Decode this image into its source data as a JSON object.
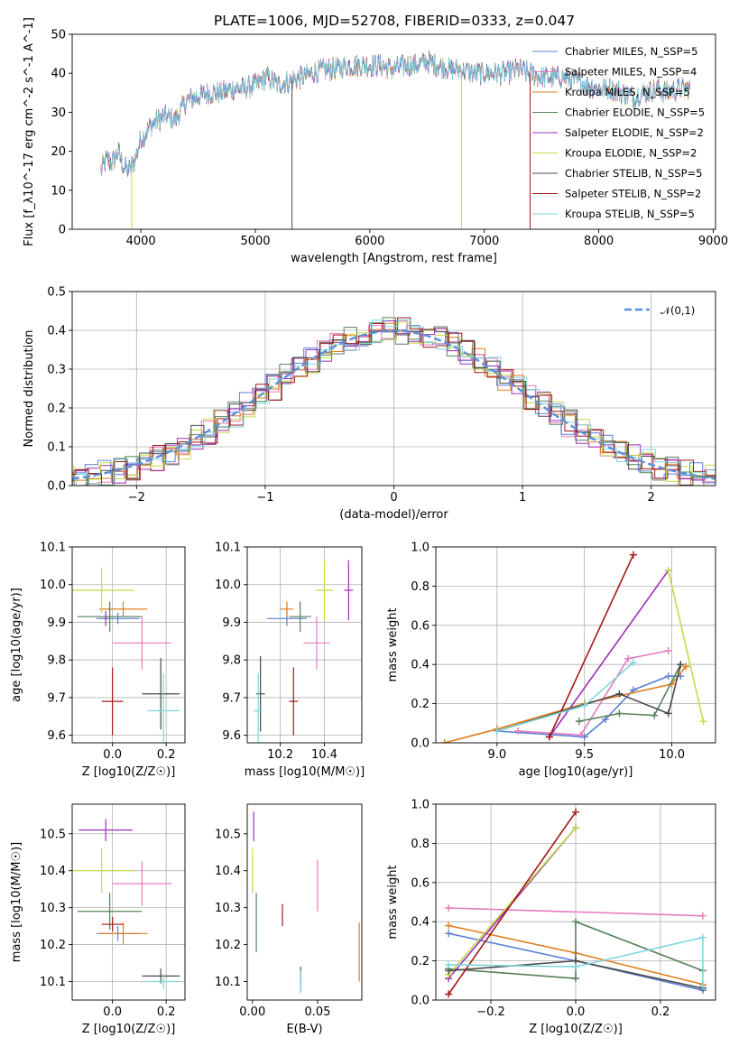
{
  "figure": {
    "title": "PLATE=1006, MJD=52708, FIBERID=0333, z=0.047"
  },
  "colors": {
    "Chabrier MILES": "#5b7fd6",
    "Salpeter MILES": "#e37bbf",
    "Kroupa MILES": "#e07e1e",
    "Chabrier ELODIE": "#55825a",
    "Salpeter ELODIE": "#9b30b5",
    "Kroupa ELODIE": "#c4dc47",
    "Chabrier STELIB": "#4a4a4a",
    "Salpeter STELIB": "#a51818",
    "Kroupa STELIB": "#7fd6dc",
    "gaussian": "#5b8fdc"
  },
  "chart_data": [
    {
      "id": "spectrum",
      "type": "line",
      "title": "PLATE=1006, MJD=52708, FIBERID=0333, z=0.047",
      "xlabel": "wavelength [Angstrom, rest frame]",
      "ylabel": "Flux [f_λ10^-17 erg cm^-2 s^-1 A^-1]",
      "xlim": [
        3400,
        9020
      ],
      "ylim": [
        0,
        50
      ],
      "xticks": [
        4000,
        5000,
        6000,
        7000,
        8000,
        9000
      ],
      "yticks": [
        0,
        10,
        20,
        30,
        40,
        50
      ],
      "grid": false,
      "legend_position": "top-right",
      "legend": [
        "Chabrier MILES, N_SSP=5",
        "Salpeter MILES, N_SSP=4",
        "Kroupa MILES, N_SSP=5",
        "Chabrier ELODIE, N_SSP=5",
        "Salpeter ELODIE, N_SSP=2",
        "Kroupa ELODIE, N_SSP=2",
        "Chabrier STELIB, N_SSP=5",
        "Salpeter STELIB, N_SSP=2",
        "Kroupa STELIB, N_SSP=5"
      ],
      "series_shape": {
        "x": [
          3650,
          3700,
          3750,
          3800,
          3850,
          3900,
          3950,
          4000,
          4100,
          4200,
          4300,
          4400,
          4500,
          4600,
          4700,
          4800,
          4900,
          5000,
          5100,
          5200,
          5300,
          5400,
          5500,
          5600,
          5700,
          5800,
          5900,
          6000,
          6100,
          6200,
          6300,
          6400,
          6500,
          6600,
          6700,
          6800,
          6900,
          7000,
          7100,
          7200,
          7300,
          7400,
          7500,
          7600,
          7700,
          7800,
          7900,
          8000,
          8100,
          8200,
          8300,
          8400,
          8500,
          8600,
          8700,
          8800
        ],
        "y": [
          15,
          18,
          17,
          20,
          16,
          15,
          18,
          23,
          27,
          29,
          28,
          33,
          34,
          35,
          35,
          36,
          36,
          37,
          39,
          37,
          38,
          39,
          40,
          41,
          41,
          42,
          42,
          42,
          42,
          41,
          42,
          42,
          43,
          42,
          41,
          41,
          40,
          40,
          40,
          40,
          41,
          40,
          39,
          39,
          39,
          38,
          37,
          36,
          36,
          35,
          34,
          35,
          36,
          35,
          36,
          36
        ]
      },
      "dropouts": [
        {
          "x": 3920,
          "series": "Kroupa ELODIE",
          "to": 0
        },
        {
          "x": 5320,
          "series": "Chabrier STELIB",
          "to": 0
        },
        {
          "x": 6800,
          "series": "Kroupa ELODIE",
          "to": 0
        },
        {
          "x": 7400,
          "series": "Salpeter STELIB",
          "to": 0
        }
      ]
    },
    {
      "id": "residuals",
      "type": "histogram",
      "xlabel": "(data-model)/error",
      "ylabel": "Normed distribution",
      "xlim": [
        -2.5,
        2.5
      ],
      "ylim": [
        0,
        0.5
      ],
      "xticks": [
        -2,
        -1,
        0,
        1,
        2
      ],
      "yticks": [
        0.0,
        0.1,
        0.2,
        0.3,
        0.4,
        0.5
      ],
      "grid": true,
      "legend_position": "top-right",
      "legend": [
        "𝒩(0,1)"
      ],
      "bin_width": 0.1,
      "note_values": "each series follows a standard normal density with scatter of about 0.03"
    },
    {
      "id": "age-vs-Z",
      "type": "errorbar",
      "xlabel": "Z [log10(Z/Z☉)]",
      "ylabel": "age  [log10(age/yr)]",
      "xlim": [
        -0.15,
        0.27
      ],
      "ylim": [
        9.58,
        10.1
      ],
      "xticks": [
        0.0,
        0.2
      ],
      "yticks": [
        9.6,
        9.7,
        9.8,
        9.9,
        10.0,
        10.1
      ],
      "grid": true,
      "points": [
        {
          "series": "Chabrier MILES",
          "x": 0.02,
          "y": 9.91,
          "xerr": 0.08,
          "yerr": 0.015
        },
        {
          "series": "Salpeter MILES",
          "x": 0.11,
          "y": 9.845,
          "xerr": 0.11,
          "yerr": 0.07
        },
        {
          "series": "Kroupa MILES",
          "x": 0.04,
          "y": 9.935,
          "xerr": 0.09,
          "yerr": 0.02
        },
        {
          "series": "Chabrier ELODIE",
          "x": -0.01,
          "y": 9.915,
          "xerr": 0.12,
          "yerr": 0.04
        },
        {
          "series": "Salpeter ELODIE",
          "x": -0.025,
          "y": 9.91,
          "xerr": 0.005,
          "yerr": 0.02
        },
        {
          "series": "Kroupa ELODIE",
          "x": -0.04,
          "y": 9.985,
          "xerr": 0.12,
          "yerr": 0.06
        },
        {
          "series": "Chabrier STELIB",
          "x": 0.18,
          "y": 9.71,
          "xerr": 0.07,
          "yerr": 0.095
        },
        {
          "series": "Salpeter STELIB",
          "x": 0.0,
          "y": 9.69,
          "xerr": 0.04,
          "yerr": 0.09
        },
        {
          "series": "Kroupa STELIB",
          "x": 0.19,
          "y": 9.665,
          "xerr": 0.06,
          "yerr": 0.1
        }
      ]
    },
    {
      "id": "age-vs-mass",
      "type": "errorbar",
      "xlabel": "mass [log10(M/M☉)]",
      "xlim": [
        10.05,
        10.57
      ],
      "ylim": [
        9.58,
        10.1
      ],
      "xticks": [
        10.2,
        10.4
      ],
      "yticks": [
        9.6,
        9.7,
        9.8,
        9.9,
        10.0,
        10.1
      ],
      "grid": true,
      "points": [
        {
          "series": "Chabrier MILES",
          "x": 10.23,
          "y": 9.91,
          "xerr": 0.09,
          "yerr": 0.02
        },
        {
          "series": "Salpeter MILES",
          "x": 10.365,
          "y": 9.845,
          "xerr": 0.06,
          "yerr": 0.07
        },
        {
          "series": "Kroupa MILES",
          "x": 10.23,
          "y": 9.935,
          "xerr": 0.03,
          "yerr": 0.02
        },
        {
          "series": "Chabrier ELODIE",
          "x": 10.29,
          "y": 9.915,
          "xerr": 0.05,
          "yerr": 0.04
        },
        {
          "series": "Salpeter ELODIE",
          "x": 10.51,
          "y": 9.985,
          "xerr": 0.02,
          "yerr": 0.08
        },
        {
          "series": "Kroupa ELODIE",
          "x": 10.4,
          "y": 9.985,
          "xerr": 0.04,
          "yerr": 0.08
        },
        {
          "series": "Chabrier STELIB",
          "x": 10.11,
          "y": 9.71,
          "xerr": 0.02,
          "yerr": 0.1
        },
        {
          "series": "Salpeter STELIB",
          "x": 10.26,
          "y": 9.69,
          "xerr": 0.02,
          "yerr": 0.09
        },
        {
          "series": "Kroupa STELIB",
          "x": 10.1,
          "y": 9.665,
          "xerr": 0.02,
          "yerr": 0.1
        }
      ]
    },
    {
      "id": "massweight-vs-age",
      "type": "line",
      "xlabel": "age  [log10(age/yr)]",
      "ylabel": "mass weight",
      "xlim": [
        8.65,
        10.25
      ],
      "ylim": [
        0,
        1.0
      ],
      "xticks": [
        9.0,
        9.5,
        10.0
      ],
      "yticks": [
        0.0,
        0.2,
        0.4,
        0.6,
        0.8,
        1.0
      ],
      "grid": true,
      "series": [
        {
          "name": "Chabrier MILES",
          "x": [
            9.0,
            9.5,
            9.62,
            9.78,
            9.98,
            10.05
          ],
          "y": [
            0.06,
            0.03,
            0.12,
            0.27,
            0.34,
            0.34
          ]
        },
        {
          "name": "Salpeter MILES",
          "x": [
            9.12,
            9.48,
            9.75,
            9.98
          ],
          "y": [
            0.06,
            0.04,
            0.43,
            0.47
          ]
        },
        {
          "name": "Kroupa MILES",
          "x": [
            8.7,
            9.0,
            9.5,
            10.0,
            10.08
          ],
          "y": [
            0.0,
            0.07,
            0.2,
            0.3,
            0.39
          ]
        },
        {
          "name": "Chabrier ELODIE",
          "x": [
            9.47,
            9.7,
            9.9,
            10.05
          ],
          "y": [
            0.11,
            0.15,
            0.14,
            0.4
          ]
        },
        {
          "name": "Salpeter ELODIE",
          "x": [
            9.3,
            9.98
          ],
          "y": [
            0.03,
            0.88
          ]
        },
        {
          "name": "Kroupa ELODIE",
          "x": [
            9.98,
            10.18
          ],
          "y": [
            0.88,
            0.11
          ]
        },
        {
          "name": "Chabrier STELIB",
          "x": [
            9.0,
            9.7,
            9.98,
            10.05
          ],
          "y": [
            0.06,
            0.25,
            0.15,
            0.4
          ]
        },
        {
          "name": "Salpeter STELIB",
          "x": [
            9.3,
            9.78
          ],
          "y": [
            0.03,
            0.96
          ]
        },
        {
          "name": "Kroupa STELIB",
          "x": [
            9.0,
            9.5,
            9.78
          ],
          "y": [
            0.06,
            0.19,
            0.41
          ]
        }
      ]
    },
    {
      "id": "mass-vs-Z",
      "type": "errorbar",
      "xlabel": "Z [log10(Z/Z☉)]",
      "ylabel": "mass [log10(M/M☉)]",
      "xlim": [
        -0.15,
        0.27
      ],
      "ylim": [
        10.05,
        10.58
      ],
      "xticks": [
        0.0,
        0.2
      ],
      "yticks": [
        10.1,
        10.2,
        10.3,
        10.4,
        10.5
      ],
      "grid": true,
      "points": [
        {
          "series": "Chabrier MILES",
          "x": 0.02,
          "y": 10.23,
          "xerr": 0.08,
          "yerr": 0.02
        },
        {
          "series": "Salpeter MILES",
          "x": 0.11,
          "y": 10.365,
          "xerr": 0.11,
          "yerr": 0.06
        },
        {
          "series": "Kroupa MILES",
          "x": 0.04,
          "y": 10.23,
          "xerr": 0.09,
          "yerr": 0.03
        },
        {
          "series": "Chabrier ELODIE",
          "x": -0.01,
          "y": 10.29,
          "xerr": 0.12,
          "yerr": 0.05
        },
        {
          "series": "Salpeter ELODIE",
          "x": -0.025,
          "y": 10.51,
          "xerr": 0.1,
          "yerr": 0.03
        },
        {
          "series": "Kroupa ELODIE",
          "x": -0.04,
          "y": 10.4,
          "xerr": 0.12,
          "yerr": 0.06
        },
        {
          "series": "Chabrier STELIB",
          "x": 0.18,
          "y": 10.115,
          "xerr": 0.07,
          "yerr": 0.02
        },
        {
          "series": "Salpeter STELIB",
          "x": 0.0,
          "y": 10.255,
          "xerr": 0.04,
          "yerr": 0.02
        },
        {
          "series": "Kroupa STELIB",
          "x": 0.19,
          "y": 10.1,
          "xerr": 0.06,
          "yerr": 0.02
        }
      ]
    },
    {
      "id": "mass-vs-EBV",
      "type": "errorbar",
      "xlabel": "E(B-V)",
      "xlim": [
        -0.004,
        0.084
      ],
      "ylim": [
        10.05,
        10.58
      ],
      "xticks": [
        0.0,
        0.05
      ],
      "yticks": [
        10.1,
        10.2,
        10.3,
        10.4,
        10.5
      ],
      "grid": false,
      "points": [
        {
          "series": "Chabrier MILES",
          "x": 0.037,
          "y": 10.1,
          "xerr": 0,
          "yerr": 0.03
        },
        {
          "series": "Salpeter MILES",
          "x": 0.05,
          "y": 10.36,
          "xerr": 0,
          "yerr": 0.07
        },
        {
          "series": "Kroupa MILES",
          "x": 0.082,
          "y": 10.18,
          "xerr": 0,
          "yerr": 0.08
        },
        {
          "series": "Chabrier ELODIE",
          "x": 0.003,
          "y": 10.26,
          "xerr": 0,
          "yerr": 0.08
        },
        {
          "series": "Salpeter ELODIE",
          "x": 0.001,
          "y": 10.52,
          "xerr": 0,
          "yerr": 0.04
        },
        {
          "series": "Kroupa ELODIE",
          "x": 0.0,
          "y": 10.4,
          "xerr": 0,
          "yerr": 0.06
        },
        {
          "series": "Chabrier STELIB",
          "x": 0.037,
          "y": 10.11,
          "xerr": 0,
          "yerr": 0.03
        },
        {
          "series": "Salpeter STELIB",
          "x": 0.023,
          "y": 10.28,
          "xerr": 0,
          "yerr": 0.03
        },
        {
          "series": "Kroupa STELIB",
          "x": 0.037,
          "y": 10.1,
          "xerr": 0,
          "yerr": 0.03
        }
      ]
    },
    {
      "id": "massweight-vs-Z",
      "type": "line",
      "xlabel": "Z [log10(Z/Z☉)]",
      "ylabel": "mass weight",
      "xlim": [
        -0.33,
        0.33
      ],
      "ylim": [
        0,
        1.0
      ],
      "xticks": [
        -0.2,
        0.0,
        0.2
      ],
      "yticks": [
        0.0,
        0.2,
        0.4,
        0.6,
        0.8,
        1.0
      ],
      "grid": true,
      "series": [
        {
          "name": "Chabrier MILES",
          "x": [
            -0.3,
            0.0,
            0.3
          ],
          "y": [
            0.34,
            0.2,
            0.05
          ]
        },
        {
          "name": "Salpeter MILES",
          "x": [
            -0.3,
            0.3
          ],
          "y": [
            0.47,
            0.43
          ]
        },
        {
          "name": "Kroupa MILES",
          "x": [
            -0.3,
            0.0,
            0.3
          ],
          "y": [
            0.38,
            0.24,
            0.08
          ]
        },
        {
          "name": "Chabrier ELODIE",
          "x": [
            -0.3,
            0.0,
            0.0,
            0.3
          ],
          "y": [
            0.16,
            0.11,
            0.4,
            0.15
          ]
        },
        {
          "name": "Salpeter ELODIE",
          "x": [
            -0.3,
            0.0
          ],
          "y": [
            0.11,
            0.88
          ]
        },
        {
          "name": "Kroupa ELODIE",
          "x": [
            -0.3,
            0.0
          ],
          "y": [
            0.13,
            0.88
          ]
        },
        {
          "name": "Chabrier STELIB",
          "x": [
            -0.3,
            0.0,
            0.3
          ],
          "y": [
            0.15,
            0.2,
            0.06
          ]
        },
        {
          "name": "Salpeter STELIB",
          "x": [
            -0.3,
            0.0
          ],
          "y": [
            0.03,
            0.96
          ]
        },
        {
          "name": "Kroupa STELIB",
          "x": [
            -0.3,
            0.0,
            0.3,
            0.3
          ],
          "y": [
            0.18,
            0.17,
            0.32,
            0.07
          ]
        }
      ]
    }
  ]
}
